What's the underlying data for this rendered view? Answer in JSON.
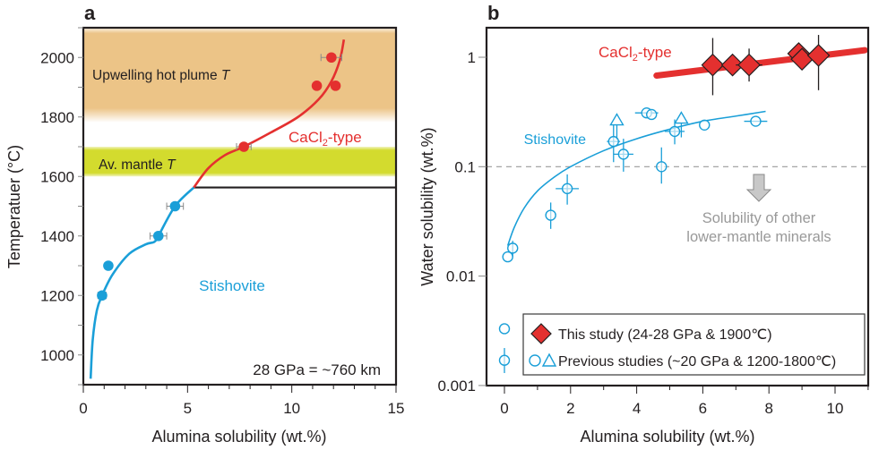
{
  "colors": {
    "stishovite": "#1a9fd8",
    "cacl2": "#e4302f",
    "plume_band": "#ecc487",
    "mantle_band": "#d3db2e",
    "axis": "#231f20",
    "gray_text": "#999999",
    "error_bar": "#8a8a8a"
  },
  "chart_data": [
    {
      "panel": "a",
      "type": "scatter",
      "panel_label": "a",
      "xlabel": "Alumina solubility (wt.%)",
      "ylabel": "Temperatuer (°C)",
      "xlim": [
        0,
        15
      ],
      "ylim": [
        900,
        2100
      ],
      "xticks": [
        0,
        5,
        10,
        15
      ],
      "xtick_labels": [
        "0",
        "5",
        "10",
        "15"
      ],
      "yticks": [
        1000,
        1200,
        1400,
        1600,
        1800,
        2000
      ],
      "ytick_labels": [
        "1000",
        "1200",
        "1400",
        "1600",
        "1800",
        "2000"
      ],
      "bands": [
        {
          "name": "Upwelling hot plume T",
          "label": "Upwelling hot plume ",
          "label_italic": "T",
          "y_range": [
            1800,
            2100
          ]
        },
        {
          "name": "Av. mantle T",
          "label": "Av. mantle ",
          "label_italic": "T",
          "y_range": [
            1600,
            1700
          ]
        }
      ],
      "series": [
        {
          "name": "Stishovite",
          "color_key": "stishovite",
          "points": [
            {
              "x": 0.9,
              "y": 1200,
              "xerr": 0.2
            },
            {
              "x": 1.2,
              "y": 1300,
              "xerr": 0
            },
            {
              "x": 3.6,
              "y": 1400,
              "xerr": 0.4
            },
            {
              "x": 4.4,
              "y": 1500,
              "xerr": 0.4
            }
          ],
          "curve": [
            [
              0.35,
              920
            ],
            [
              0.45,
              1050
            ],
            [
              0.65,
              1150
            ],
            [
              0.9,
              1200
            ],
            [
              1.4,
              1270
            ],
            [
              2.2,
              1340
            ],
            [
              3.0,
              1372
            ],
            [
              3.4,
              1380
            ],
            [
              3.6,
              1400
            ],
            [
              4.4,
              1500
            ],
            [
              5.3,
              1563
            ]
          ]
        },
        {
          "name": "CaCl2-type",
          "color_key": "cacl2",
          "points": [
            {
              "x": 7.7,
              "y": 1700,
              "xerr": 0.35
            },
            {
              "x": 11.2,
              "y": 1905,
              "xerr": 0.15
            },
            {
              "x": 12.1,
              "y": 1905,
              "xerr": 0.15
            },
            {
              "x": 11.9,
              "y": 2000,
              "xerr": 0.5
            }
          ],
          "curve": [
            [
              5.3,
              1563
            ],
            [
              6.0,
              1628
            ],
            [
              6.8,
              1672
            ],
            [
              7.7,
              1700
            ],
            [
              9.0,
              1748
            ],
            [
              10.3,
              1800
            ],
            [
              11.3,
              1860
            ],
            [
              11.9,
              1920
            ],
            [
              12.3,
              1990
            ],
            [
              12.5,
              2060
            ]
          ]
        }
      ],
      "boundary_line": {
        "y": 1563,
        "x_range": [
          5.3,
          15
        ]
      },
      "annotations": {
        "stishovite": "Stishovite",
        "cacl2_prefix": "CaCl",
        "cacl2_sub": "2",
        "cacl2_suffix": "-type",
        "pressure": "28 GPa = ~760 km"
      }
    },
    {
      "panel": "b",
      "type": "scatter",
      "panel_label": "b",
      "xlabel": "Alumina solubility (wt.%)",
      "ylabel": "Water solubility (wt.%)",
      "xlim": [
        -0.6,
        11
      ],
      "ylim": [
        0.001,
        2
      ],
      "yscale": "log",
      "xticks": [
        0,
        2,
        4,
        6,
        8,
        10
      ],
      "xtick_labels": [
        "0",
        "2",
        "4",
        "6",
        "8",
        "10"
      ],
      "yticks": [
        0.001,
        0.01,
        0.1,
        1
      ],
      "ytick_labels": [
        "0.001",
        "0.01",
        "0.1",
        "1"
      ],
      "reference_line": {
        "y": 0.1,
        "style": "dashed"
      },
      "series": [
        {
          "name": "This study (24-28 GPa & 1900℃)",
          "marker": "diamond",
          "color_key": "cacl2",
          "points": [
            {
              "x": 6.3,
              "y": 0.85,
              "xerr": 0.3,
              "ylo": 0.45,
              "yhi": 1.5
            },
            {
              "x": 6.9,
              "y": 0.85,
              "xerr": 0,
              "ylo": 0.85,
              "yhi": 0.85
            },
            {
              "x": 7.4,
              "y": 0.85,
              "xerr": 0.4,
              "ylo": 0.6,
              "yhi": 1.2
            },
            {
              "x": 8.9,
              "y": 1.08,
              "xerr": 0,
              "ylo": 1.08,
              "yhi": 1.08
            },
            {
              "x": 9.0,
              "y": 0.96,
              "xerr": 0,
              "ylo": 0.96,
              "yhi": 0.96
            },
            {
              "x": 9.5,
              "y": 1.04,
              "xerr": 0,
              "ylo": 0.5,
              "yhi": 1.6
            }
          ],
          "fit_line": [
            [
              4.6,
              0.68
            ],
            [
              10.9,
              1.16
            ]
          ]
        },
        {
          "name": "Previous studies (~20 GPa & 1200-1800℃)",
          "marker": "circle",
          "color_key": "stishovite",
          "points": [
            {
              "x": 0.0,
              "y": 0.0017,
              "xerr": 0,
              "ylo": 0.0013,
              "yhi": 0.0022
            },
            {
              "x": 0.0,
              "y": 0.0033,
              "xerr": 0,
              "ylo": 0.0033,
              "yhi": 0.0033
            },
            {
              "x": 0.1,
              "y": 0.015,
              "xerr": 0,
              "ylo": 0.015,
              "yhi": 0.015
            },
            {
              "x": 0.25,
              "y": 0.018,
              "xerr": 0,
              "ylo": 0.015,
              "yhi": 0.021
            },
            {
              "x": 1.4,
              "y": 0.036,
              "xerr": 0,
              "ylo": 0.027,
              "yhi": 0.047
            },
            {
              "x": 1.9,
              "y": 0.063,
              "xerr": 0.35,
              "ylo": 0.045,
              "yhi": 0.085
            },
            {
              "x": 3.3,
              "y": 0.17,
              "xerr": 0.2,
              "ylo": 0.11,
              "yhi": 0.25
            },
            {
              "x": 3.6,
              "y": 0.13,
              "xerr": 0.3,
              "ylo": 0.09,
              "yhi": 0.18
            },
            {
              "x": 4.3,
              "y": 0.31,
              "xerr": 0.35,
              "ylo": 0.31,
              "yhi": 0.31
            },
            {
              "x": 4.45,
              "y": 0.3,
              "xerr": 0,
              "ylo": 0.3,
              "yhi": 0.3
            },
            {
              "x": 4.75,
              "y": 0.1,
              "xerr": 0,
              "ylo": 0.07,
              "yhi": 0.15
            },
            {
              "x": 5.15,
              "y": 0.21,
              "xerr": 0.3,
              "ylo": 0.16,
              "yhi": 0.27
            },
            {
              "x": 6.05,
              "y": 0.24,
              "xerr": 0,
              "ylo": 0.24,
              "yhi": 0.24
            },
            {
              "x": 7.6,
              "y": 0.26,
              "xerr": 0.35,
              "ylo": 0.26,
              "yhi": 0.26
            }
          ]
        },
        {
          "name": "Previous studies (triangles)",
          "marker": "triangle",
          "color_key": "stishovite",
          "points": [
            {
              "x": 3.4,
              "y": 0.26,
              "lower_limit": true
            },
            {
              "x": 5.35,
              "y": 0.27,
              "lower_limit": true
            }
          ]
        }
      ],
      "stishovite_curve": [
        [
          0.1,
          0.019
        ],
        [
          0.3,
          0.028
        ],
        [
          0.6,
          0.042
        ],
        [
          1.0,
          0.06
        ],
        [
          1.5,
          0.08
        ],
        [
          2.0,
          0.1
        ],
        [
          3.0,
          0.14
        ],
        [
          4.0,
          0.18
        ],
        [
          5.0,
          0.22
        ],
        [
          6.0,
          0.26
        ],
        [
          7.0,
          0.29
        ],
        [
          7.9,
          0.32
        ]
      ],
      "annotations": {
        "stishovite": "Stishovite",
        "cacl2_prefix": "CaCl",
        "cacl2_sub": "2",
        "cacl2_suffix": "-type",
        "other_minerals_line1": "Solubility of other",
        "other_minerals_line2": "lower-mantle minerals"
      },
      "legend": {
        "placement": "bottom-right",
        "entries": [
          {
            "markers": [
              "diamond"
            ],
            "label": "This study (24-28 GPa & 1900℃)"
          },
          {
            "markers": [
              "circle",
              "triangle"
            ],
            "label": "Previous studies (~20 GPa & 1200-1800℃)"
          }
        ]
      }
    }
  ]
}
